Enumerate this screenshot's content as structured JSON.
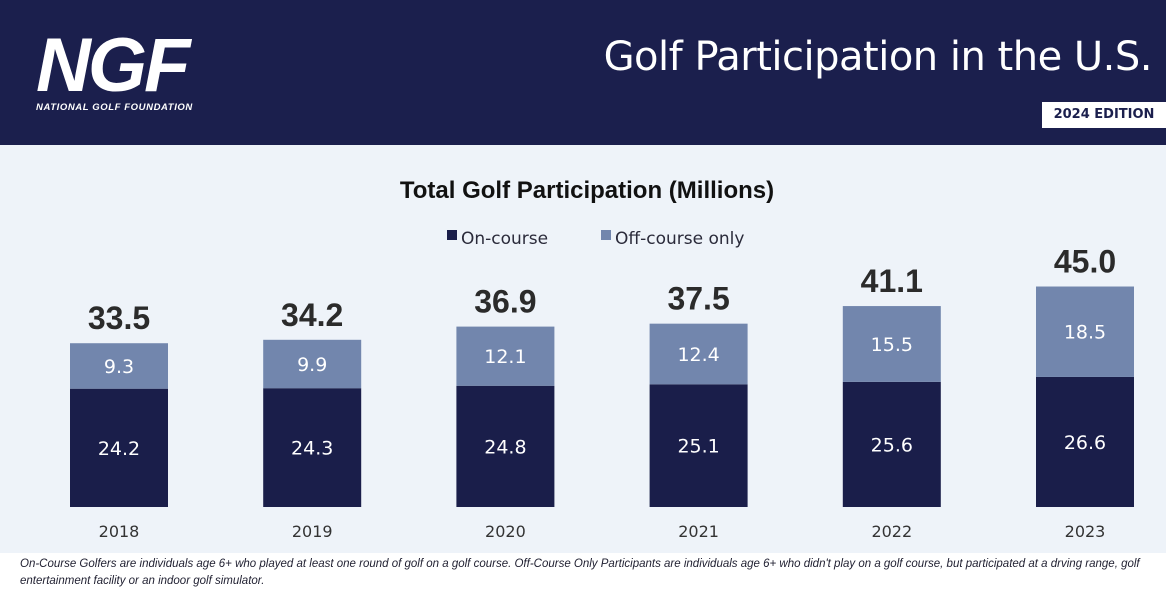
{
  "header": {
    "logo_text": "NGF",
    "logo_subtitle": "NATIONAL GOLF FOUNDATION",
    "title": "Golf Participation in the U.S.",
    "edition_badge": "2024 EDITION"
  },
  "colors": {
    "header_bg": "#1b1f4d",
    "panel_bg": "#eef3f9",
    "on_course": "#1a1e4a",
    "off_course": "#7286ad"
  },
  "chart_data": {
    "type": "bar",
    "stacked": true,
    "title": "Total Golf Participation (Millions)",
    "categories": [
      "2018",
      "2019",
      "2020",
      "2021",
      "2022",
      "2023"
    ],
    "series": [
      {
        "name": "On-course",
        "values": [
          24.2,
          24.3,
          24.8,
          25.1,
          25.6,
          26.6
        ],
        "color": "#1a1e4a"
      },
      {
        "name": "Off-course only",
        "values": [
          9.3,
          9.9,
          12.1,
          12.4,
          15.5,
          18.5
        ],
        "color": "#7286ad"
      }
    ],
    "totals": [
      33.5,
      34.2,
      36.9,
      37.5,
      41.1,
      45.0
    ],
    "total_labels": [
      "33.5",
      "34.2",
      "36.9",
      "37.5",
      "41.1",
      "45.0"
    ],
    "on_course_labels": [
      "24.2",
      "24.3",
      "24.8",
      "25.1",
      "25.6",
      "26.6"
    ],
    "off_course_labels": [
      "9.3",
      "9.9",
      "12.1",
      "12.4",
      "15.5",
      "18.5"
    ],
    "legend_position": "top-center",
    "grid": false,
    "y_axis_visible": false,
    "ylim": [
      0,
      45
    ]
  },
  "footnote": "On-Course Golfers are individuals age 6+ who played at least one round of golf on a golf course.  Off-Course Only Participants are individuals age 6+ who didn't play on a golf course, but participated at a drving range, golf entertainment facility or an indoor golf simulator."
}
